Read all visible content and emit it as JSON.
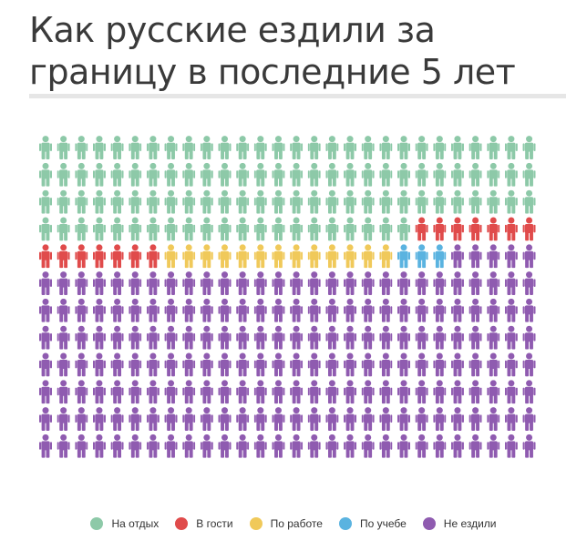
{
  "title": "Как русские ездили за границу в последние 5 лет",
  "chart_data": {
    "type": "pictogram",
    "title": "Как русские ездили за границу в последние 5 лет",
    "total_icons": 336,
    "columns": 28,
    "rows": 12,
    "series": [
      {
        "name": "На отдых",
        "count": 105,
        "color": "#8dc9a8"
      },
      {
        "name": "В гости",
        "count": 14,
        "color": "#e04b4b"
      },
      {
        "name": "По работе",
        "count": 13,
        "color": "#f0c95a"
      },
      {
        "name": "По учебе",
        "count": 3,
        "color": "#5ab3e0"
      },
      {
        "name": "Не ездили",
        "count": 201,
        "color": "#8f5bb0"
      }
    ],
    "legend_position": "bottom"
  }
}
